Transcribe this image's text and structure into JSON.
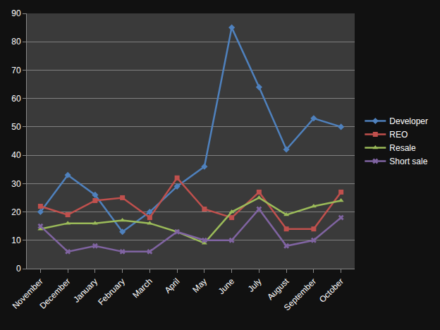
{
  "chart_data": {
    "type": "line",
    "categories": [
      "November",
      "December",
      "January",
      "February",
      "March",
      "April",
      "May",
      "June",
      "July",
      "August",
      "September",
      "October"
    ],
    "series": [
      {
        "name": "Developer",
        "color": "#4f81bd",
        "marker": "diamond",
        "values": [
          20,
          33,
          26,
          13,
          20,
          29,
          36,
          85,
          64,
          42,
          53,
          50
        ]
      },
      {
        "name": "REO",
        "color": "#c0504d",
        "marker": "square",
        "values": [
          22,
          19,
          24,
          25,
          18,
          32,
          21,
          18,
          27,
          14,
          14,
          27
        ]
      },
      {
        "name": "Resale",
        "color": "#9bbb59",
        "marker": "triangle",
        "values": [
          14,
          16,
          16,
          17,
          16,
          13,
          9,
          20,
          25,
          19,
          22,
          24
        ]
      },
      {
        "name": "Short sale",
        "color": "#8064a2",
        "marker": "x",
        "values": [
          15,
          6,
          8,
          6,
          6,
          13,
          10,
          10,
          21,
          8,
          10,
          18
        ]
      }
    ],
    "ylim": [
      0,
      90
    ],
    "yticks": [
      0,
      10,
      20,
      30,
      40,
      50,
      60,
      70,
      80,
      90
    ],
    "grid": true,
    "legend": "right"
  }
}
